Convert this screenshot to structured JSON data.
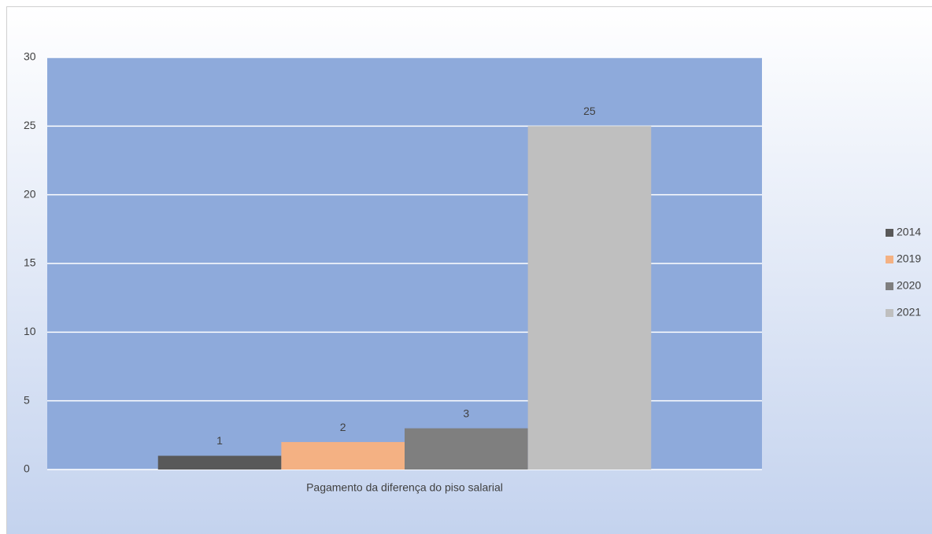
{
  "chart_data": {
    "type": "bar",
    "categories": [
      "Pagamento da diferença do piso salarial"
    ],
    "series": [
      {
        "name": "2014",
        "color": "#595959",
        "values": [
          1
        ]
      },
      {
        "name": "2019",
        "color": "#f4b183",
        "values": [
          2
        ]
      },
      {
        "name": "2020",
        "color": "#7f7f7f",
        "values": [
          3
        ]
      },
      {
        "name": "2021",
        "color": "#bfbfbf",
        "values": [
          25
        ]
      }
    ],
    "ylim": [
      0,
      30
    ],
    "yticks": [
      0,
      5,
      10,
      15,
      20,
      25,
      30
    ],
    "grid": true,
    "legend": "right"
  }
}
